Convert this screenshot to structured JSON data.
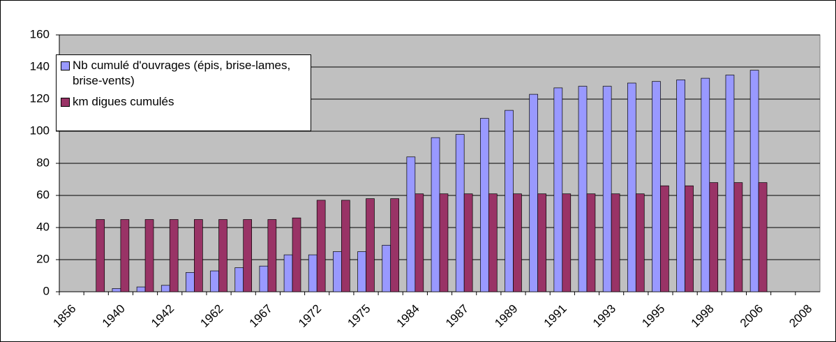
{
  "chart_data": {
    "type": "bar",
    "categories": [
      "1856",
      null,
      "1940",
      null,
      "1942",
      null,
      "1962",
      null,
      "1967",
      null,
      "1972",
      null,
      "1975",
      null,
      "1984",
      null,
      "1987",
      null,
      "1989",
      null,
      "1991",
      null,
      "1993",
      null,
      "1995",
      null,
      "1998",
      null,
      "2006",
      null,
      "2008"
    ],
    "series": [
      {
        "name": "Nb cumulé d'ouvrages (épis, brise-lames, brise-vents)",
        "color": "#9999ff",
        "values": [
          null,
          null,
          2,
          3,
          4,
          12,
          13,
          15,
          16,
          23,
          23,
          25,
          25,
          29,
          84,
          96,
          98,
          108,
          113,
          123,
          127,
          128,
          128,
          130,
          131,
          132,
          133,
          135,
          138,
          null,
          null
        ]
      },
      {
        "name": "km digues cumulés",
        "color": "#993366",
        "values": [
          null,
          45,
          45,
          45,
          45,
          45,
          45,
          45,
          45,
          46,
          57,
          57,
          58,
          58,
          61,
          61,
          61,
          61,
          61,
          61,
          61,
          61,
          61,
          61,
          66,
          66,
          68,
          68,
          68,
          null,
          null
        ]
      }
    ],
    "ylim": [
      0,
      160
    ],
    "yticks": [
      0,
      20,
      40,
      60,
      80,
      100,
      120,
      140,
      160
    ],
    "grid": true,
    "legend": "upper left",
    "plot_background": "#c0c0c0"
  }
}
